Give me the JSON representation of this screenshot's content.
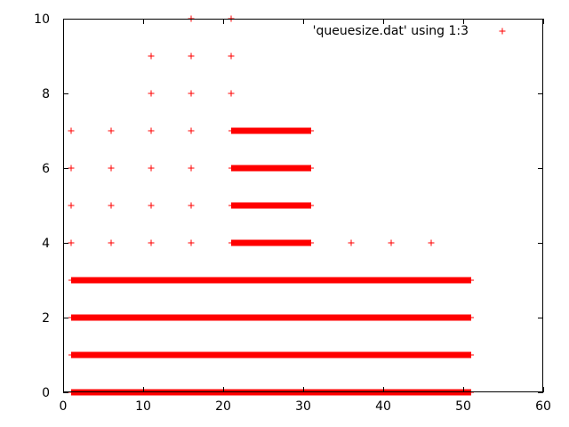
{
  "chart_data": {
    "type": "scatter",
    "title": "",
    "xlabel": "",
    "ylabel": "",
    "xlim": [
      0,
      60
    ],
    "ylim": [
      0,
      10
    ],
    "x_ticks": [
      0,
      10,
      20,
      30,
      40,
      50,
      60
    ],
    "y_ticks": [
      0,
      2,
      4,
      6,
      8,
      10
    ],
    "grid": false,
    "legend": {
      "position": "top-right",
      "entries": [
        "'queuesize.dat' using 1:3"
      ]
    },
    "color": "#ff0000",
    "series": [
      {
        "name": "'queuesize.dat' using 1:3",
        "runs": [
          {
            "y": 0,
            "x_start": 1,
            "x_end": 51
          },
          {
            "y": 1,
            "x_start": 1,
            "x_end": 51
          },
          {
            "y": 2,
            "x_start": 1,
            "x_end": 51
          },
          {
            "y": 3,
            "x_start": 1,
            "x_end": 51
          },
          {
            "y": 4,
            "x_start": 21,
            "x_end": 31
          },
          {
            "y": 5,
            "x_start": 21,
            "x_end": 31
          },
          {
            "y": 6,
            "x_start": 21,
            "x_end": 31
          },
          {
            "y": 7,
            "x_start": 21,
            "x_end": 31
          }
        ],
        "points": [
          {
            "x": 1,
            "y": 4
          },
          {
            "x": 6,
            "y": 4
          },
          {
            "x": 11,
            "y": 4
          },
          {
            "x": 16,
            "y": 4
          },
          {
            "x": 36,
            "y": 4
          },
          {
            "x": 41,
            "y": 4
          },
          {
            "x": 46,
            "y": 4
          },
          {
            "x": 1,
            "y": 5
          },
          {
            "x": 6,
            "y": 5
          },
          {
            "x": 11,
            "y": 5
          },
          {
            "x": 16,
            "y": 5
          },
          {
            "x": 1,
            "y": 6
          },
          {
            "x": 6,
            "y": 6
          },
          {
            "x": 11,
            "y": 6
          },
          {
            "x": 16,
            "y": 6
          },
          {
            "x": 1,
            "y": 7
          },
          {
            "x": 6,
            "y": 7
          },
          {
            "x": 11,
            "y": 7
          },
          {
            "x": 16,
            "y": 7
          },
          {
            "x": 11,
            "y": 8
          },
          {
            "x": 16,
            "y": 8
          },
          {
            "x": 21,
            "y": 8
          },
          {
            "x": 11,
            "y": 9
          },
          {
            "x": 16,
            "y": 9
          },
          {
            "x": 21,
            "y": 9
          },
          {
            "x": 16,
            "y": 10
          },
          {
            "x": 21,
            "y": 10
          }
        ]
      }
    ]
  }
}
